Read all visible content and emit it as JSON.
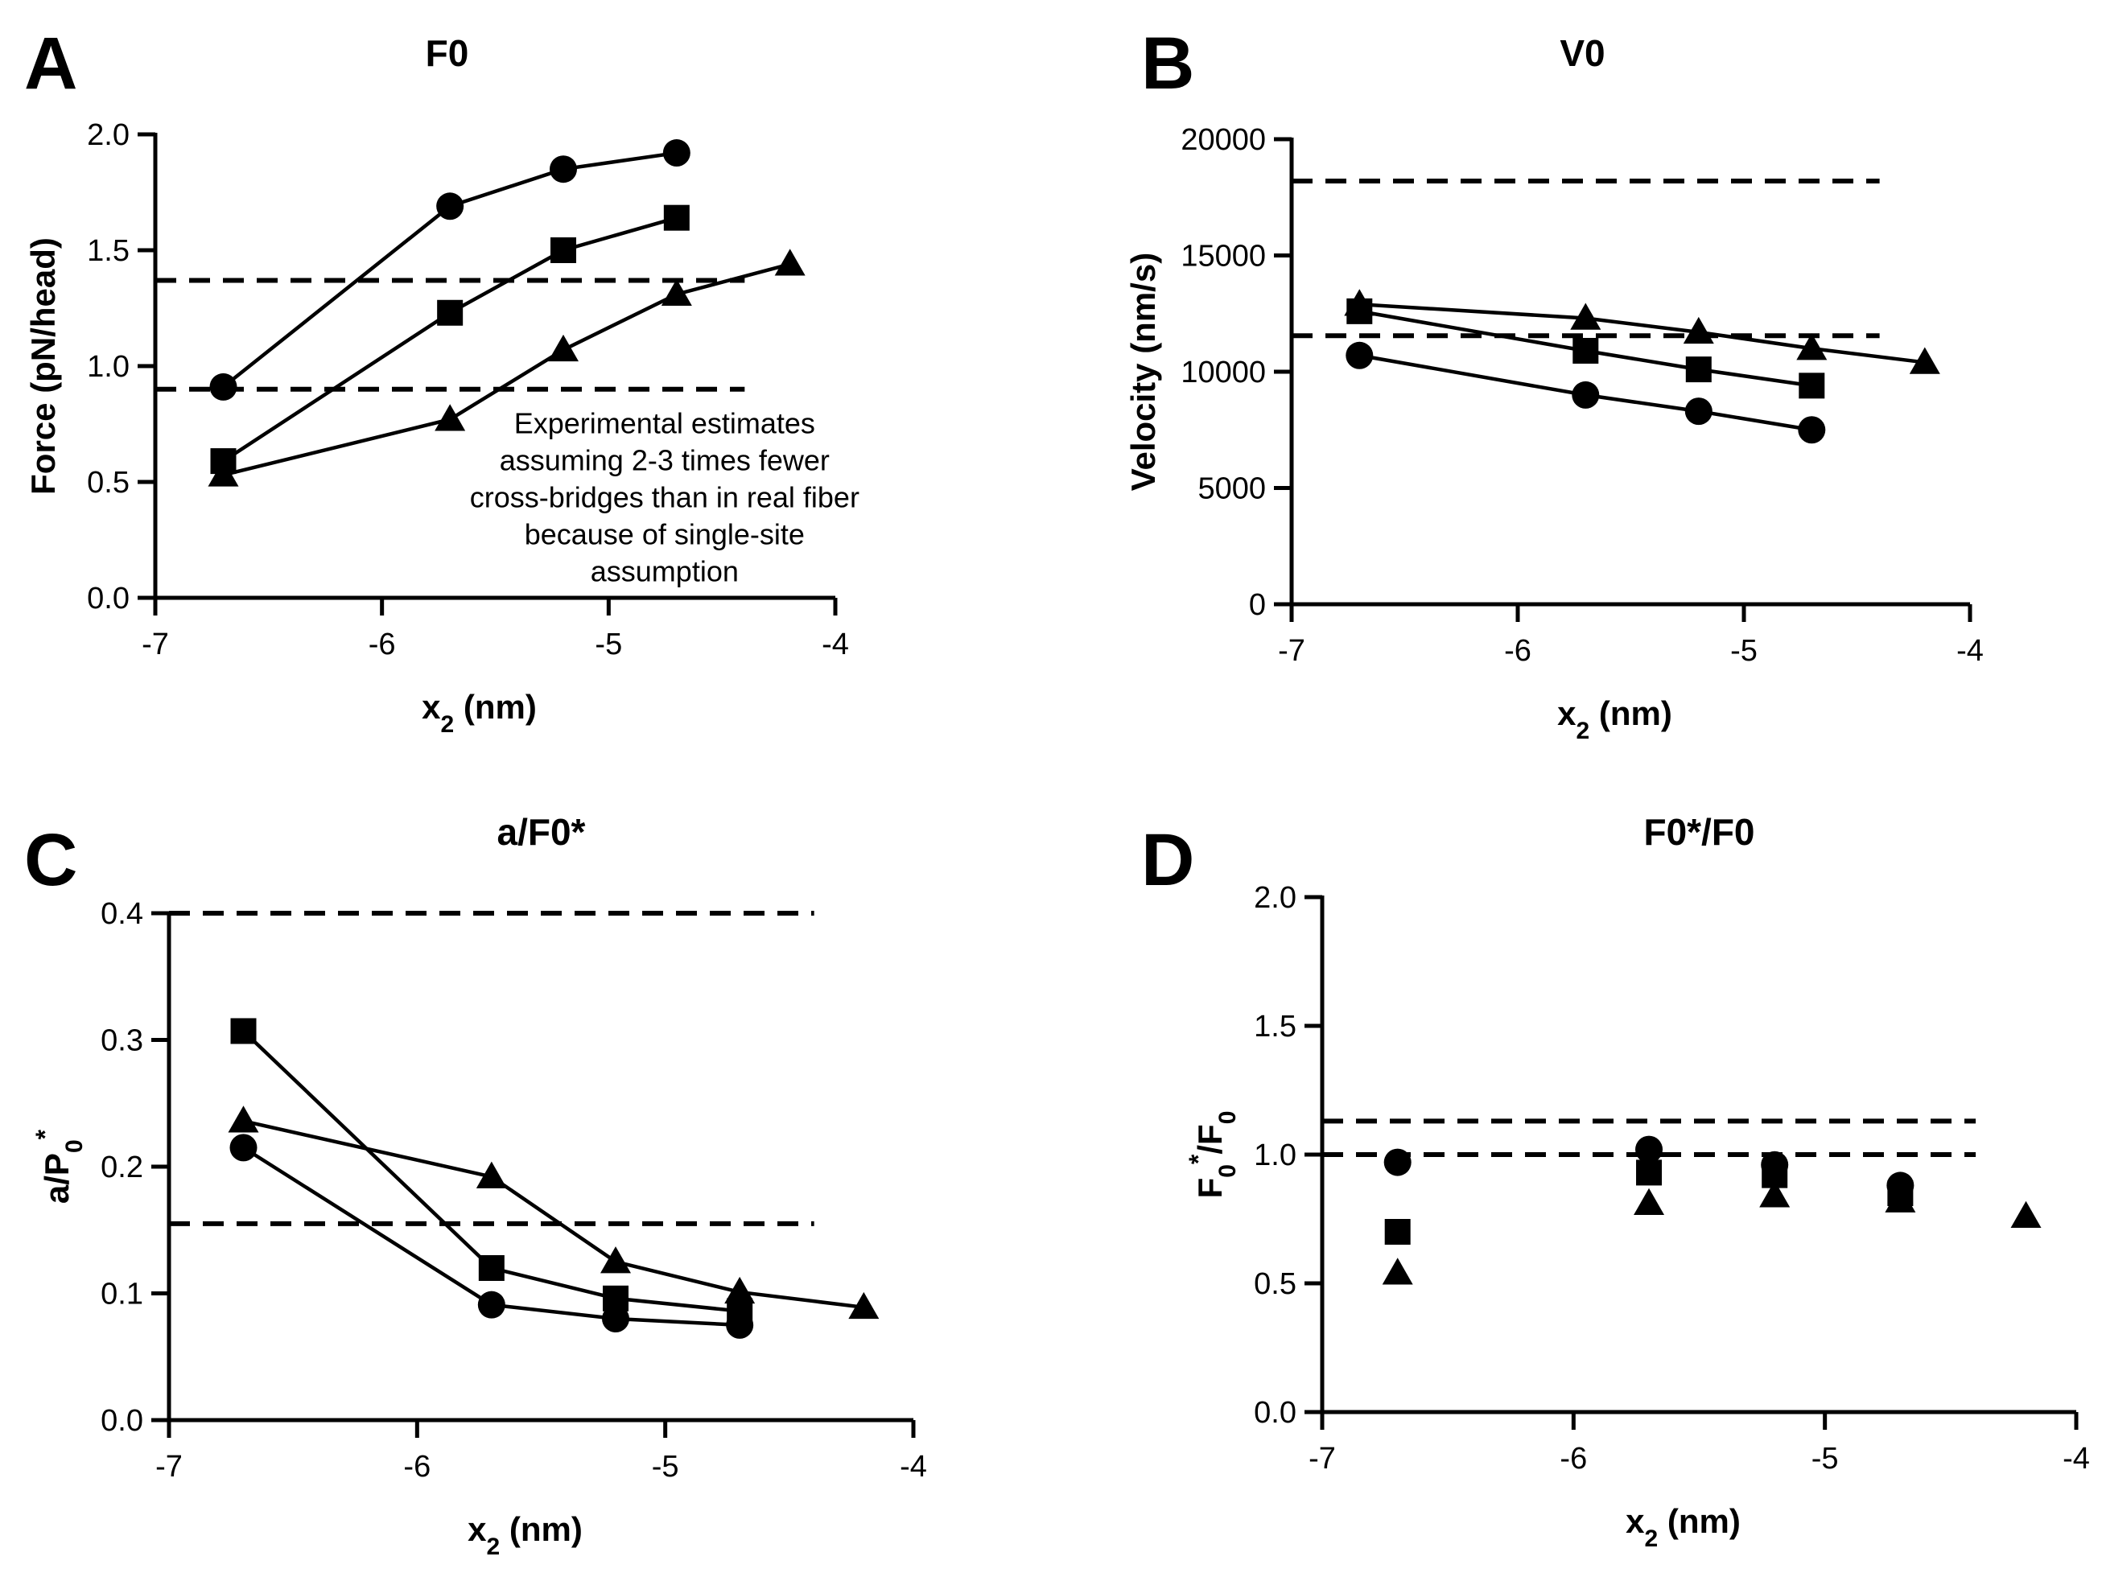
{
  "chart_data": [
    {
      "id": "A",
      "type": "line",
      "panel_letter": "A",
      "title": "F0",
      "xlabel": "x",
      "xlabel_sub": "2",
      "xlabel_unit": " (nm)",
      "ylabel": "Force (pN/head)",
      "xlim": [
        -7,
        -4
      ],
      "ylim": [
        0,
        2.0
      ],
      "xticks": [
        -7,
        -6,
        -5,
        -4
      ],
      "xtick_labels": [
        "-7",
        "-6",
        "-5",
        "-4"
      ],
      "yticks": [
        0,
        0.5,
        1.0,
        1.5,
        2.0
      ],
      "ytick_labels": [
        "0.0",
        "0.5",
        "1.0",
        "1.5",
        "2.0"
      ],
      "series": [
        {
          "name": "circle",
          "marker": "circle",
          "line": true,
          "x": [
            -6.7,
            -5.7,
            -5.2,
            -4.7
          ],
          "y": [
            0.91,
            1.69,
            1.85,
            1.92
          ]
        },
        {
          "name": "square",
          "marker": "square",
          "line": true,
          "x": [
            -6.7,
            -5.7,
            -5.2,
            -4.7
          ],
          "y": [
            0.59,
            1.23,
            1.5,
            1.64
          ]
        },
        {
          "name": "triangle",
          "marker": "triangle",
          "line": true,
          "x": [
            -6.7,
            -5.7,
            -5.2,
            -4.7,
            -4.2
          ],
          "y": [
            0.53,
            0.77,
            1.07,
            1.31,
            1.44
          ]
        }
      ],
      "reference_lines": [
        {
          "y": 1.37,
          "x0": -7,
          "x1": -4.4
        },
        {
          "y": 0.9,
          "x0": -7,
          "x1": -4.4
        }
      ],
      "annotation": {
        "lines": [
          "Experimental estimates",
          "assuming 2-3 times fewer",
          "cross-bridges than in real fiber",
          "because of single-site",
          "assumption"
        ],
        "x": -4.7,
        "y": 0.78
      }
    },
    {
      "id": "B",
      "type": "line",
      "panel_letter": "B",
      "title": "V0",
      "xlabel": "x",
      "xlabel_sub": "2",
      "xlabel_unit": " (nm)",
      "ylabel": "Velocity (nm/s)",
      "xlim": [
        -7,
        -4
      ],
      "ylim": [
        0,
        20000
      ],
      "xticks": [
        -7,
        -6,
        -5,
        -4
      ],
      "xtick_labels": [
        "-7",
        "-6",
        "-5",
        "-4"
      ],
      "yticks": [
        0,
        5000,
        10000,
        15000,
        20000
      ],
      "ytick_labels": [
        "0",
        "5000",
        "10000",
        "15000",
        "20000"
      ],
      "series": [
        {
          "name": "circle",
          "marker": "circle",
          "line": true,
          "x": [
            -6.7,
            -5.7,
            -5.2,
            -4.7
          ],
          "y": [
            10700,
            9000,
            8300,
            7500
          ]
        },
        {
          "name": "square",
          "marker": "square",
          "line": true,
          "x": [
            -6.7,
            -5.7,
            -5.2,
            -4.7
          ],
          "y": [
            12600,
            10900,
            10100,
            9400
          ]
        },
        {
          "name": "triangle",
          "marker": "triangle",
          "line": true,
          "x": [
            -6.7,
            -5.7,
            -5.2,
            -4.7,
            -4.2
          ],
          "y": [
            12900,
            12300,
            11700,
            11000,
            10400
          ]
        }
      ],
      "reference_lines": [
        {
          "y": 18200,
          "x0": -7,
          "x1": -4.4
        },
        {
          "y": 11550,
          "x0": -7,
          "x1": -4.4
        }
      ]
    },
    {
      "id": "C",
      "type": "line",
      "panel_letter": "C",
      "title": "a/F0*",
      "xlabel": "x",
      "xlabel_sub": "2",
      "xlabel_unit": " (nm)",
      "ylabel": "a/P",
      "ylabel_sub": "0",
      "ylabel_sup": "*",
      "xlim": [
        -7,
        -4
      ],
      "ylim": [
        0,
        0.4
      ],
      "xticks": [
        -7,
        -6,
        -5,
        -4
      ],
      "xtick_labels": [
        "-7",
        "-6",
        "-5",
        "-4"
      ],
      "yticks": [
        0,
        0.1,
        0.2,
        0.3,
        0.4
      ],
      "ytick_labels": [
        "0.0",
        "0.1",
        "0.2",
        "0.3",
        "0.4"
      ],
      "series": [
        {
          "name": "circle",
          "marker": "circle",
          "line": true,
          "x": [
            -6.7,
            -5.7,
            -5.2,
            -4.7
          ],
          "y": [
            0.215,
            0.091,
            0.08,
            0.075
          ]
        },
        {
          "name": "square",
          "marker": "square",
          "line": true,
          "x": [
            -6.7,
            -5.7,
            -5.2,
            -4.7
          ],
          "y": [
            0.307,
            0.12,
            0.096,
            0.086
          ]
        },
        {
          "name": "triangle",
          "marker": "triangle",
          "line": true,
          "x": [
            -6.7,
            -5.7,
            -5.2,
            -4.7,
            -4.2
          ],
          "y": [
            0.236,
            0.192,
            0.125,
            0.101,
            0.089
          ]
        }
      ],
      "reference_lines": [
        {
          "y": 0.4,
          "x0": -7,
          "x1": -4.4
        },
        {
          "y": 0.155,
          "x0": -7,
          "x1": -4.4
        }
      ]
    },
    {
      "id": "D",
      "type": "scatter",
      "panel_letter": "D",
      "title": "F0*/F0",
      "xlabel": "x",
      "xlabel_sub": "2",
      "xlabel_unit": " (nm)",
      "ylabel": "F",
      "ylabel_sub": "0",
      "ylabel_sup": "*",
      "ylabel_rest": "/F",
      "ylabel_sub2": "0",
      "xlim": [
        -7,
        -4
      ],
      "ylim": [
        0,
        2.0
      ],
      "xticks": [
        -7,
        -6,
        -5,
        -4
      ],
      "xtick_labels": [
        "-7",
        "-6",
        "-5",
        "-4"
      ],
      "yticks": [
        0,
        0.5,
        1.0,
        1.5,
        2.0
      ],
      "ytick_labels": [
        "0.0",
        "0.5",
        "1.0",
        "1.5",
        "2.0"
      ],
      "series": [
        {
          "name": "circle",
          "marker": "circle",
          "line": false,
          "x": [
            -6.7,
            -5.7,
            -5.2,
            -4.7
          ],
          "y": [
            0.97,
            1.02,
            0.96,
            0.88
          ]
        },
        {
          "name": "square",
          "marker": "square",
          "line": false,
          "x": [
            -6.7,
            -5.7,
            -5.2,
            -4.7
          ],
          "y": [
            0.7,
            0.93,
            0.92,
            0.85
          ]
        },
        {
          "name": "triangle",
          "marker": "triangle",
          "line": false,
          "x": [
            -6.7,
            -5.7,
            -5.2,
            -4.7,
            -4.2
          ],
          "y": [
            0.54,
            0.81,
            0.84,
            0.82,
            0.76
          ]
        }
      ],
      "reference_lines": [
        {
          "y": 1.13,
          "x0": -7,
          "x1": -4.4
        },
        {
          "y": 1.0,
          "x0": -7,
          "x1": -4.4
        }
      ]
    }
  ]
}
